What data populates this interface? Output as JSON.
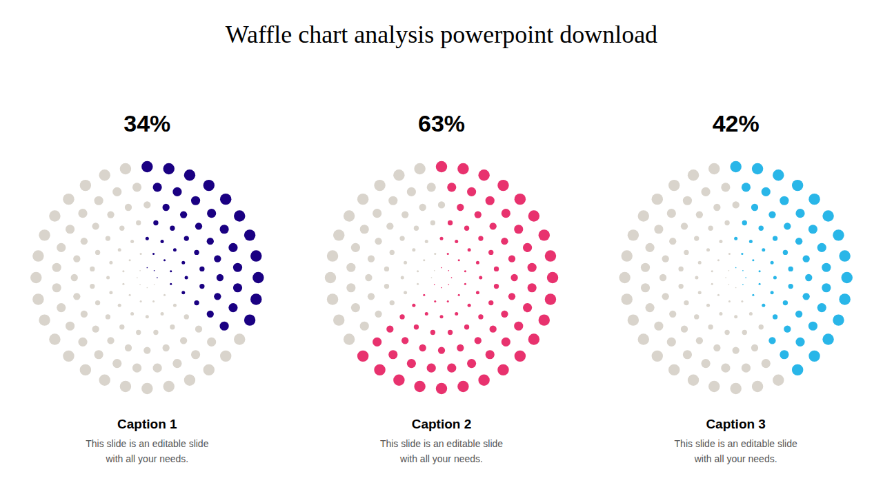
{
  "chart_data": {
    "type": "waffle",
    "title": "Waffle chart analysis powerpoint download",
    "categories": [
      "Caption 1",
      "Caption 2",
      "Caption 3"
    ],
    "values": [
      34,
      63,
      42
    ],
    "value_labels": [
      "34%",
      "63%",
      "42%"
    ],
    "colors": [
      "#1a0082",
      "#e8326e",
      "#29b6e8"
    ],
    "annotations": [
      "This slide is an editable slide\nwith all your needs.",
      "This slide is an editable slide\nwith all your needs.",
      "This slide is an editable slide\nwith all your needs."
    ],
    "data_labels": true
  }
}
